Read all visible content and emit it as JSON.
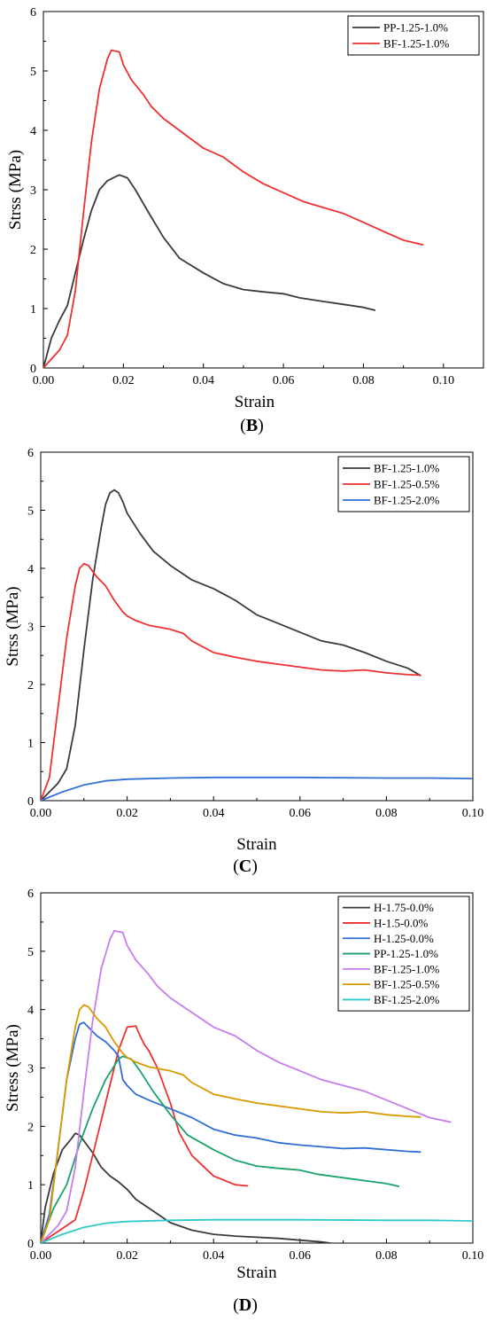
{
  "chart_data": [
    {
      "type": "line",
      "panel_label_open": "(",
      "panel_label_letter": "B",
      "panel_label_close": ")",
      "xlabel": "Strain",
      "ylabel": "Strss (MPa)",
      "xlim": [
        0,
        0.11
      ],
      "ylim": [
        0,
        6
      ],
      "xticks": [
        "0.00",
        "0.02",
        "0.04",
        "0.06",
        "0.08",
        "0.10"
      ],
      "yticks": [
        "0",
        "1",
        "2",
        "3",
        "4",
        "5",
        "6"
      ],
      "legend_position": "top-right",
      "series": [
        {
          "name": "PP-1.25-1.0%",
          "color": "#3a3a3a",
          "x": [
            0,
            0.002,
            0.004,
            0.006,
            0.008,
            0.01,
            0.012,
            0.014,
            0.016,
            0.018,
            0.019,
            0.021,
            0.023,
            0.026,
            0.03,
            0.034,
            0.04,
            0.045,
            0.05,
            0.055,
            0.06,
            0.064,
            0.07,
            0.075,
            0.08,
            0.083
          ],
          "y": [
            0,
            0.5,
            0.8,
            1.05,
            1.6,
            2.15,
            2.65,
            3.0,
            3.15,
            3.22,
            3.25,
            3.2,
            3.0,
            2.65,
            2.2,
            1.85,
            1.6,
            1.42,
            1.32,
            1.28,
            1.25,
            1.18,
            1.12,
            1.07,
            1.02,
            0.97
          ]
        },
        {
          "name": "BF-1.25-1.0%",
          "color": "#f03030",
          "x": [
            0,
            0.004,
            0.006,
            0.008,
            0.01,
            0.012,
            0.014,
            0.016,
            0.017,
            0.019,
            0.02,
            0.022,
            0.025,
            0.027,
            0.03,
            0.035,
            0.04,
            0.045,
            0.05,
            0.055,
            0.06,
            0.065,
            0.07,
            0.075,
            0.08,
            0.085,
            0.09,
            0.095
          ],
          "y": [
            0,
            0.3,
            0.55,
            1.3,
            2.6,
            3.8,
            4.7,
            5.2,
            5.35,
            5.32,
            5.1,
            4.85,
            4.6,
            4.4,
            4.2,
            3.95,
            3.7,
            3.55,
            3.3,
            3.1,
            2.95,
            2.8,
            2.7,
            2.6,
            2.45,
            2.3,
            2.15,
            2.07
          ]
        }
      ]
    },
    {
      "type": "line",
      "panel_label_open": "(",
      "panel_label_letter": "C",
      "panel_label_close": ")",
      "xlabel": "Strain",
      "ylabel": "Strss (MPa)",
      "xlim": [
        0,
        0.1
      ],
      "ylim": [
        0,
        6
      ],
      "xticks": [
        "0.00",
        "0.02",
        "0.04",
        "0.06",
        "0.08",
        "0.10"
      ],
      "yticks": [
        "0",
        "1",
        "2",
        "3",
        "4",
        "5",
        "6"
      ],
      "legend_position": "top-right",
      "series": [
        {
          "name": "BF-1.25-1.0%",
          "color": "#3a3a3a",
          "x": [
            0,
            0.004,
            0.006,
            0.008,
            0.01,
            0.012,
            0.014,
            0.015,
            0.016,
            0.017,
            0.018,
            0.019,
            0.02,
            0.023,
            0.026,
            0.03,
            0.035,
            0.04,
            0.045,
            0.05,
            0.055,
            0.06,
            0.065,
            0.07,
            0.075,
            0.08,
            0.085,
            0.088
          ],
          "y": [
            0,
            0.3,
            0.55,
            1.3,
            2.6,
            3.8,
            4.7,
            5.1,
            5.3,
            5.35,
            5.3,
            5.15,
            4.95,
            4.6,
            4.3,
            4.05,
            3.8,
            3.65,
            3.45,
            3.2,
            3.05,
            2.9,
            2.75,
            2.68,
            2.55,
            2.4,
            2.28,
            2.15
          ]
        },
        {
          "name": "BF-1.25-0.5%",
          "color": "#f03030",
          "x": [
            0,
            0.002,
            0.004,
            0.006,
            0.008,
            0.009,
            0.01,
            0.011,
            0.013,
            0.015,
            0.017,
            0.019,
            0.02,
            0.022,
            0.025,
            0.03,
            0.033,
            0.035,
            0.04,
            0.045,
            0.05,
            0.055,
            0.06,
            0.065,
            0.07,
            0.075,
            0.08,
            0.085,
            0.088
          ],
          "y": [
            0,
            0.4,
            1.6,
            2.8,
            3.7,
            4.0,
            4.08,
            4.05,
            3.85,
            3.7,
            3.45,
            3.25,
            3.18,
            3.1,
            3.02,
            2.95,
            2.88,
            2.75,
            2.55,
            2.47,
            2.4,
            2.35,
            2.3,
            2.25,
            2.23,
            2.25,
            2.2,
            2.17,
            2.16
          ]
        },
        {
          "name": "BF-1.25-2.0%",
          "color": "#2f6ed6",
          "x": [
            0,
            0.005,
            0.01,
            0.015,
            0.02,
            0.03,
            0.04,
            0.06,
            0.08,
            0.09,
            0.1
          ],
          "y": [
            0,
            0.15,
            0.27,
            0.34,
            0.37,
            0.39,
            0.4,
            0.4,
            0.39,
            0.39,
            0.38
          ]
        }
      ]
    },
    {
      "type": "line",
      "panel_label_open": "(",
      "panel_label_letter": "D",
      "panel_label_close": ")",
      "xlabel": "Strain",
      "ylabel": "Stress (MPa)",
      "xlim": [
        0,
        0.1
      ],
      "ylim": [
        0,
        6
      ],
      "xticks": [
        "0.00",
        "0.02",
        "0.04",
        "0.06",
        "0.08",
        "0.10"
      ],
      "yticks": [
        "0",
        "1",
        "2",
        "3",
        "4",
        "5",
        "6"
      ],
      "legend_position": "top-right",
      "series": [
        {
          "name": "H-1.75-0.0%",
          "color": "#3a3a3a",
          "x": [
            0,
            0.001,
            0.003,
            0.005,
            0.007,
            0.008,
            0.009,
            0.01,
            0.012,
            0.014,
            0.016,
            0.018,
            0.02,
            0.022,
            0.025,
            0.03,
            0.035,
            0.04,
            0.045,
            0.05,
            0.055,
            0.06,
            0.065,
            0.067
          ],
          "y": [
            0,
            0.6,
            1.2,
            1.6,
            1.78,
            1.88,
            1.85,
            1.75,
            1.55,
            1.3,
            1.15,
            1.05,
            0.92,
            0.75,
            0.6,
            0.35,
            0.22,
            0.15,
            0.12,
            0.1,
            0.08,
            0.05,
            0.02,
            0.0
          ]
        },
        {
          "name": "H-1.5-0.0%",
          "color": "#f03030",
          "x": [
            0,
            0.008,
            0.01,
            0.012,
            0.015,
            0.018,
            0.02,
            0.022,
            0.023,
            0.024,
            0.025,
            0.027,
            0.03,
            0.032,
            0.035,
            0.04,
            0.045,
            0.048
          ],
          "y": [
            0,
            0.4,
            0.9,
            1.5,
            2.4,
            3.3,
            3.7,
            3.72,
            3.55,
            3.4,
            3.3,
            3.0,
            2.4,
            1.9,
            1.5,
            1.15,
            1.0,
            0.98
          ]
        },
        {
          "name": "H-1.25-0.0%",
          "color": "#2f6ed6",
          "x": [
            0,
            0.002,
            0.004,
            0.006,
            0.008,
            0.009,
            0.01,
            0.011,
            0.013,
            0.015,
            0.017,
            0.018,
            0.019,
            0.02,
            0.022,
            0.025,
            0.03,
            0.035,
            0.04,
            0.045,
            0.05,
            0.055,
            0.06,
            0.065,
            0.07,
            0.075,
            0.08,
            0.085,
            0.088
          ],
          "y": [
            0,
            0.5,
            1.6,
            2.8,
            3.5,
            3.75,
            3.78,
            3.7,
            3.55,
            3.45,
            3.3,
            3.2,
            2.8,
            2.7,
            2.55,
            2.45,
            2.3,
            2.15,
            1.95,
            1.85,
            1.8,
            1.72,
            1.68,
            1.65,
            1.62,
            1.63,
            1.6,
            1.57,
            1.56
          ]
        },
        {
          "name": "PP-1.25-1.0%",
          "color": "#1aa36b",
          "x": [
            0,
            0.003,
            0.006,
            0.009,
            0.012,
            0.015,
            0.018,
            0.019,
            0.021,
            0.023,
            0.026,
            0.03,
            0.034,
            0.04,
            0.045,
            0.05,
            0.055,
            0.06,
            0.064,
            0.07,
            0.075,
            0.08,
            0.083
          ],
          "y": [
            0,
            0.6,
            1.0,
            1.7,
            2.3,
            2.8,
            3.15,
            3.2,
            3.15,
            2.95,
            2.6,
            2.2,
            1.85,
            1.6,
            1.42,
            1.32,
            1.28,
            1.25,
            1.18,
            1.12,
            1.07,
            1.02,
            0.97
          ]
        },
        {
          "name": "BF-1.25-1.0%",
          "color": "#c77cf0",
          "x": [
            0,
            0.004,
            0.006,
            0.008,
            0.01,
            0.012,
            0.014,
            0.016,
            0.017,
            0.019,
            0.02,
            0.022,
            0.025,
            0.027,
            0.03,
            0.035,
            0.04,
            0.045,
            0.05,
            0.055,
            0.06,
            0.065,
            0.07,
            0.075,
            0.08,
            0.085,
            0.09,
            0.095
          ],
          "y": [
            0,
            0.3,
            0.55,
            1.3,
            2.6,
            3.8,
            4.7,
            5.2,
            5.35,
            5.32,
            5.1,
            4.85,
            4.6,
            4.4,
            4.2,
            3.95,
            3.7,
            3.55,
            3.3,
            3.1,
            2.95,
            2.8,
            2.7,
            2.6,
            2.45,
            2.3,
            2.15,
            2.07
          ]
        },
        {
          "name": "BF-1.25-0.5%",
          "color": "#d99a00",
          "x": [
            0,
            0.002,
            0.004,
            0.006,
            0.008,
            0.009,
            0.01,
            0.011,
            0.013,
            0.015,
            0.017,
            0.019,
            0.02,
            0.022,
            0.025,
            0.03,
            0.033,
            0.035,
            0.04,
            0.045,
            0.05,
            0.055,
            0.06,
            0.065,
            0.07,
            0.075,
            0.08,
            0.085,
            0.088
          ],
          "y": [
            0,
            0.4,
            1.6,
            2.8,
            3.7,
            4.0,
            4.08,
            4.05,
            3.85,
            3.7,
            3.45,
            3.25,
            3.18,
            3.1,
            3.02,
            2.95,
            2.88,
            2.75,
            2.55,
            2.47,
            2.4,
            2.35,
            2.3,
            2.25,
            2.23,
            2.25,
            2.2,
            2.17,
            2.16
          ]
        },
        {
          "name": "BF-1.25-2.0%",
          "color": "#2ec9c9",
          "x": [
            0,
            0.005,
            0.01,
            0.015,
            0.02,
            0.03,
            0.04,
            0.06,
            0.08,
            0.09,
            0.1
          ],
          "y": [
            0,
            0.15,
            0.27,
            0.34,
            0.37,
            0.39,
            0.4,
            0.4,
            0.39,
            0.39,
            0.38
          ]
        }
      ]
    }
  ]
}
